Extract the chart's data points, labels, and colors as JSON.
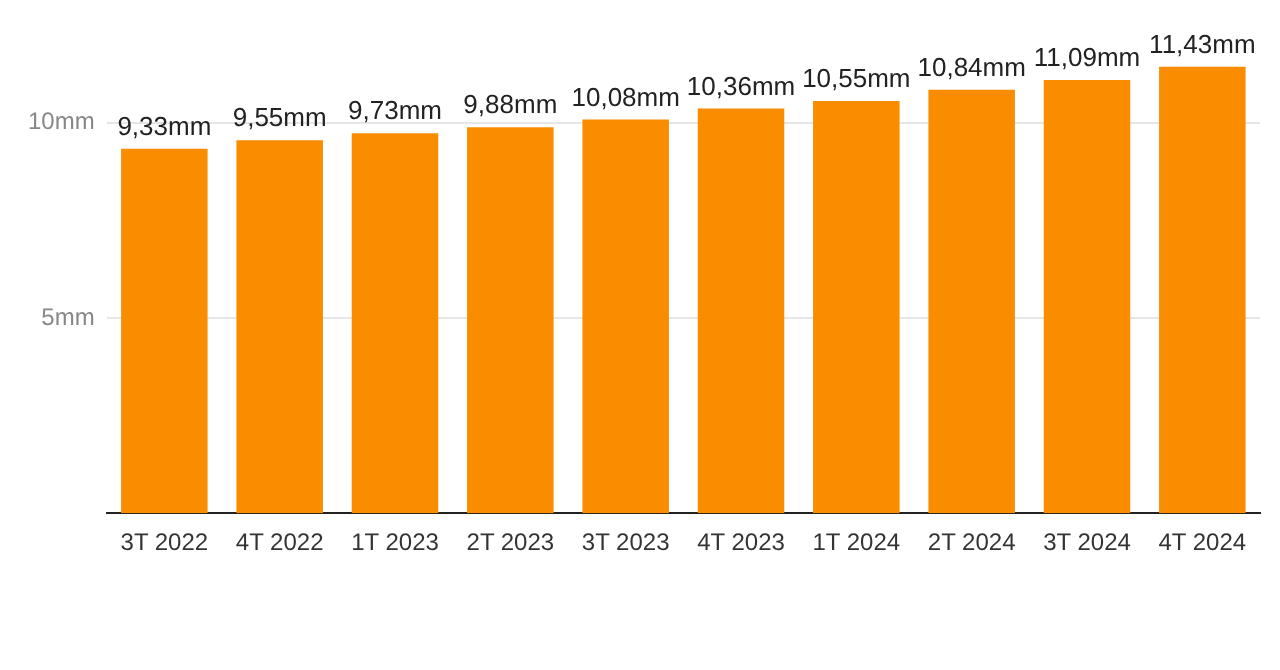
{
  "chart_data": {
    "type": "bar",
    "categories": [
      "3T 2022",
      "4T 2022",
      "1T 2023",
      "2T 2023",
      "3T 2023",
      "4T 2023",
      "1T 2024",
      "2T 2024",
      "3T 2024",
      "4T 2024"
    ],
    "values": [
      9.33,
      9.55,
      9.73,
      9.88,
      10.08,
      10.36,
      10.55,
      10.84,
      11.09,
      11.43
    ],
    "value_labels": [
      "9,33mm",
      "9,55mm",
      "9,73mm",
      "9,88mm",
      "10,08mm",
      "10,36mm",
      "10,55mm",
      "10,84mm",
      "11,09mm",
      "11,43mm"
    ],
    "color": "#fa8c00",
    "ylim": [
      0,
      11.5
    ],
    "yticks": [
      {
        "value": 5,
        "label": "5mm"
      },
      {
        "value": 10,
        "label": "10mm"
      }
    ],
    "grid": "y",
    "legend": false
  }
}
